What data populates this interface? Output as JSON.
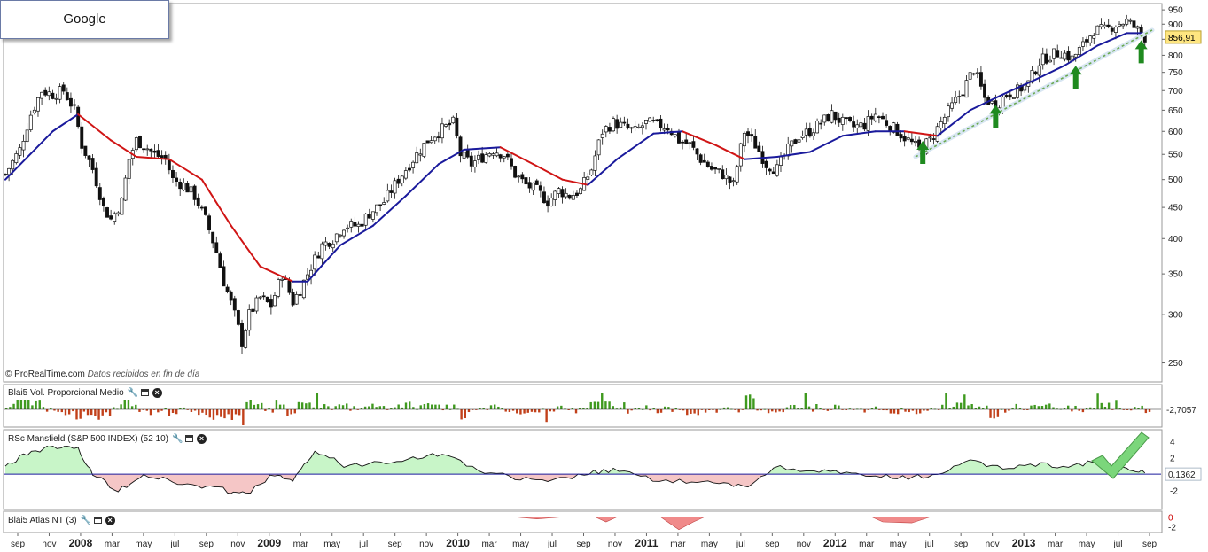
{
  "app": {
    "title": "Google",
    "credit": "© ProRealTime.com",
    "credit_note": "Datos recibidos en fin de día"
  },
  "colors": {
    "ma_up": "#1a1a9c",
    "ma_down": "#d01515",
    "arrow": "#1f8a1f",
    "vol_up": "#3f9a1f",
    "vol_down": "#c2401a",
    "rs_pos_fill": "#c8f5c8",
    "rs_neg_fill": "#f5c6c6",
    "atlas_fill": "#f08a8a",
    "price_badge": "#ffe680",
    "checkmark": "#7bd67b"
  },
  "panels": {
    "volume": {
      "label": "Blai5 Vol. Proporcional Medio",
      "last_value": "-2,7057"
    },
    "mansfield": {
      "label": "RSc Mansfield (S&P 500 INDEX) (52 10)",
      "last_value": "0,1362",
      "ticks": [
        "4",
        "2",
        "-2"
      ]
    },
    "atlas": {
      "label": "Blai5 Atlas NT (3)",
      "ticks": [
        "0",
        "-2"
      ]
    }
  },
  "chart_data": [
    {
      "type": "candlestick",
      "title": "Google",
      "y_scale": "log",
      "ylim": [
        235,
        960
      ],
      "price_ticks": [
        "950",
        "900",
        "850",
        "800",
        "750",
        "700",
        "650",
        "600",
        "550",
        "500",
        "450",
        "400",
        "350",
        "300",
        "250"
      ],
      "last_price": "856,91",
      "x_ticks": [
        "sep",
        "nov",
        "2008",
        "mar",
        "may",
        "jul",
        "sep",
        "nov",
        "2009",
        "mar",
        "may",
        "jul",
        "sep",
        "nov",
        "2010",
        "mar",
        "may",
        "jul",
        "sep",
        "nov",
        "2011",
        "mar",
        "may",
        "jul",
        "sep",
        "nov",
        "2012",
        "mar",
        "may",
        "jul",
        "sep",
        "nov",
        "2013",
        "mar",
        "may",
        "jul",
        "sep"
      ],
      "bold_ticks": [
        "2008",
        "2009",
        "2010",
        "2011",
        "2012",
        "2013"
      ],
      "x_range": [
        "2007-08-27",
        "2013-09-09"
      ],
      "weekly_close_path": [
        [
          "2007-08-27",
          510
        ],
        [
          "2007-09-24",
          560
        ],
        [
          "2007-10-15",
          640
        ],
        [
          "2007-11-05",
          700
        ],
        [
          "2007-11-26",
          690
        ],
        [
          "2007-12-17",
          700
        ],
        [
          "2008-01-07",
          650
        ],
        [
          "2008-01-21",
          570
        ],
        [
          "2008-02-11",
          520
        ],
        [
          "2008-03-03",
          450
        ],
        [
          "2008-03-17",
          430
        ],
        [
          "2008-04-07",
          460
        ],
        [
          "2008-04-21",
          540
        ],
        [
          "2008-05-05",
          580
        ],
        [
          "2008-05-19",
          570
        ],
        [
          "2008-06-09",
          550
        ],
        [
          "2008-06-30",
          540
        ],
        [
          "2008-07-14",
          500
        ],
        [
          "2008-08-04",
          490
        ],
        [
          "2008-08-25",
          470
        ],
        [
          "2008-09-15",
          430
        ],
        [
          "2008-10-06",
          380
        ],
        [
          "2008-10-20",
          340
        ],
        [
          "2008-11-10",
          300
        ],
        [
          "2008-11-24",
          270
        ],
        [
          "2008-12-08",
          300
        ],
        [
          "2008-12-29",
          320
        ],
        [
          "2009-01-19",
          310
        ],
        [
          "2009-02-09",
          350
        ],
        [
          "2009-03-02",
          315
        ],
        [
          "2009-03-16",
          330
        ],
        [
          "2009-04-06",
          360
        ],
        [
          "2009-04-27",
          390
        ],
        [
          "2009-05-18",
          400
        ],
        [
          "2009-06-08",
          420
        ],
        [
          "2009-07-06",
          420
        ],
        [
          "2009-07-27",
          440
        ],
        [
          "2009-08-24",
          460
        ],
        [
          "2009-09-14",
          490
        ],
        [
          "2009-10-05",
          520
        ],
        [
          "2009-10-26",
          550
        ],
        [
          "2009-11-16",
          580
        ],
        [
          "2009-12-07",
          600
        ],
        [
          "2010-01-04",
          620
        ],
        [
          "2010-01-18",
          550
        ],
        [
          "2010-02-08",
          530
        ],
        [
          "2010-03-01",
          545
        ],
        [
          "2010-03-22",
          560
        ],
        [
          "2010-04-12",
          550
        ],
        [
          "2010-05-03",
          510
        ],
        [
          "2010-05-24",
          490
        ],
        [
          "2010-06-14",
          480
        ],
        [
          "2010-07-05",
          460
        ],
        [
          "2010-07-26",
          480
        ],
        [
          "2010-08-16",
          470
        ],
        [
          "2010-09-06",
          480
        ],
        [
          "2010-09-27",
          520
        ],
        [
          "2010-10-18",
          600
        ],
        [
          "2010-11-08",
          620
        ],
        [
          "2010-11-29",
          610
        ],
        [
          "2010-12-20",
          600
        ],
        [
          "2011-01-10",
          620
        ],
        [
          "2011-01-31",
          615
        ],
        [
          "2011-02-21",
          610
        ],
        [
          "2011-03-14",
          580
        ],
        [
          "2011-04-04",
          570
        ],
        [
          "2011-04-25",
          540
        ],
        [
          "2011-05-16",
          520
        ],
        [
          "2011-06-06",
          510
        ],
        [
          "2011-06-27",
          490
        ],
        [
          "2011-07-18",
          600
        ],
        [
          "2011-08-08",
          570
        ],
        [
          "2011-08-29",
          530
        ],
        [
          "2011-09-19",
          520
        ],
        [
          "2011-10-10",
          560
        ],
        [
          "2011-10-31",
          590
        ],
        [
          "2011-11-21",
          600
        ],
        [
          "2011-12-12",
          620
        ],
        [
          "2012-01-02",
          640
        ],
        [
          "2012-01-23",
          620
        ],
        [
          "2012-02-13",
          610
        ],
        [
          "2012-03-05",
          615
        ],
        [
          "2012-03-26",
          640
        ],
        [
          "2012-04-16",
          620
        ],
        [
          "2012-05-07",
          600
        ],
        [
          "2012-05-28",
          580
        ],
        [
          "2012-06-18",
          560
        ],
        [
          "2012-07-09",
          580
        ],
        [
          "2012-07-30",
          620
        ],
        [
          "2012-08-20",
          660
        ],
        [
          "2012-09-10",
          700
        ],
        [
          "2012-10-01",
          760
        ],
        [
          "2012-10-22",
          680
        ],
        [
          "2012-11-12",
          660
        ],
        [
          "2012-12-03",
          690
        ],
        [
          "2012-12-24",
          700
        ],
        [
          "2013-01-14",
          720
        ],
        [
          "2013-02-04",
          780
        ],
        [
          "2013-02-25",
          800
        ],
        [
          "2013-03-18",
          810
        ],
        [
          "2013-04-08",
          790
        ],
        [
          "2013-04-29",
          830
        ],
        [
          "2013-05-20",
          880
        ],
        [
          "2013-06-10",
          880
        ],
        [
          "2013-07-01",
          900
        ],
        [
          "2013-07-22",
          910
        ],
        [
          "2013-08-12",
          880
        ],
        [
          "2013-08-26",
          857
        ]
      ]
    },
    {
      "type": "line",
      "series": [
        {
          "color_key": "ma",
          "values_by_date": [
            [
              "2007-08-27",
              500
            ],
            [
              "2007-11-26",
              600
            ],
            [
              "2008-01-14",
              640
            ],
            [
              "2008-03-17",
              580
            ],
            [
              "2008-05-05",
              545
            ],
            [
              "2008-07-07",
              540
            ],
            [
              "2008-09-08",
              500
            ],
            [
              "2008-11-03",
              420
            ],
            [
              "2008-12-29",
              360
            ],
            [
              "2009-03-02",
              340
            ],
            [
              "2009-03-30",
              340
            ],
            [
              "2009-06-01",
              390
            ],
            [
              "2009-08-03",
              420
            ],
            [
              "2009-10-05",
              470
            ],
            [
              "2009-12-07",
              530
            ],
            [
              "2010-01-25",
              560
            ],
            [
              "2010-04-05",
              565
            ],
            [
              "2010-06-07",
              530
            ],
            [
              "2010-08-02",
              500
            ],
            [
              "2010-09-20",
              490
            ],
            [
              "2010-11-15",
              540
            ],
            [
              "2011-01-24",
              595
            ],
            [
              "2011-03-21",
              600
            ],
            [
              "2011-05-23",
              570
            ],
            [
              "2011-07-18",
              540
            ],
            [
              "2011-09-19",
              545
            ],
            [
              "2011-11-21",
              555
            ],
            [
              "2012-01-23",
              590
            ],
            [
              "2012-03-26",
              600
            ],
            [
              "2012-05-21",
              600
            ],
            [
              "2012-07-23",
              590
            ],
            [
              "2012-09-24",
              650
            ],
            [
              "2012-11-26",
              690
            ],
            [
              "2013-01-28",
              730
            ],
            [
              "2013-03-25",
              770
            ],
            [
              "2013-05-27",
              830
            ],
            [
              "2013-07-22",
              870
            ],
            [
              "2013-08-26",
              870
            ]
          ]
        }
      ]
    },
    {
      "type": "bar",
      "title": "Blai5 Vol. Proporcional Medio",
      "ylim": [
        -4,
        4
      ],
      "bars": 310
    },
    {
      "type": "area",
      "title": "RSc Mansfield (S&P 500 INDEX) (52 10)",
      "ylim": [
        -4,
        5
      ],
      "points": [
        [
          "2007-08-27",
          1
        ],
        [
          "2007-10-08",
          2.5
        ],
        [
          "2007-11-26",
          3.5
        ],
        [
          "2008-01-14",
          3
        ],
        [
          "2008-02-11",
          0
        ],
        [
          "2008-03-31",
          -2
        ],
        [
          "2008-05-19",
          0
        ],
        [
          "2008-07-14",
          -1
        ],
        [
          "2008-09-08",
          -1.5
        ],
        [
          "2008-10-27",
          -2
        ],
        [
          "2008-12-01",
          -2.5
        ],
        [
          "2009-01-26",
          0
        ],
        [
          "2009-03-02",
          -1
        ],
        [
          "2009-04-13",
          3
        ],
        [
          "2009-06-08",
          1
        ],
        [
          "2009-08-17",
          1.5
        ],
        [
          "2009-10-19",
          2
        ],
        [
          "2009-12-14",
          2.5
        ],
        [
          "2010-02-22",
          0.5
        ],
        [
          "2010-05-03",
          -0.5
        ],
        [
          "2010-07-05",
          -1
        ],
        [
          "2010-09-13",
          0
        ],
        [
          "2010-11-08",
          0.5
        ],
        [
          "2011-01-10",
          -0.5
        ],
        [
          "2011-03-28",
          -1
        ],
        [
          "2011-05-30",
          -1.2
        ],
        [
          "2011-07-25",
          -1.5
        ],
        [
          "2011-09-12",
          0.8
        ],
        [
          "2011-11-28",
          0.5
        ],
        [
          "2012-01-30",
          0
        ],
        [
          "2012-03-26",
          -0.3
        ],
        [
          "2012-05-28",
          -0.5
        ],
        [
          "2012-07-23",
          0
        ],
        [
          "2012-09-24",
          1.5
        ],
        [
          "2012-11-26",
          0.8
        ],
        [
          "2013-01-28",
          1.2
        ],
        [
          "2013-04-01",
          1
        ],
        [
          "2013-05-27",
          1.5
        ],
        [
          "2013-07-22",
          0.5
        ],
        [
          "2013-08-26",
          0.1362
        ]
      ]
    },
    {
      "type": "area",
      "title": "Blai5 Atlas NT (3)",
      "ylim": [
        -3,
        1
      ],
      "points": [
        [
          "2007-08-27",
          0
        ],
        [
          "2010-05-03",
          0
        ],
        [
          "2010-06-14",
          -0.4
        ],
        [
          "2010-08-02",
          0
        ],
        [
          "2010-10-04",
          0
        ],
        [
          "2010-10-25",
          -1
        ],
        [
          "2010-11-15",
          0
        ],
        [
          "2011-02-07",
          0
        ],
        [
          "2011-03-14",
          -2.6
        ],
        [
          "2011-04-11",
          -1
        ],
        [
          "2011-05-02",
          0
        ],
        [
          "2012-03-19",
          0
        ],
        [
          "2012-04-09",
          -1
        ],
        [
          "2012-06-04",
          -1.2
        ],
        [
          "2012-07-09",
          0
        ],
        [
          "2013-08-26",
          0
        ]
      ]
    }
  ],
  "annotations": {
    "arrow_dates": [
      "2012-06-25",
      "2012-11-12",
      "2013-04-15",
      "2013-08-19"
    ],
    "trendline": [
      [
        "2012-06-11",
        545
      ],
      [
        "2013-09-09",
        880
      ]
    ]
  }
}
